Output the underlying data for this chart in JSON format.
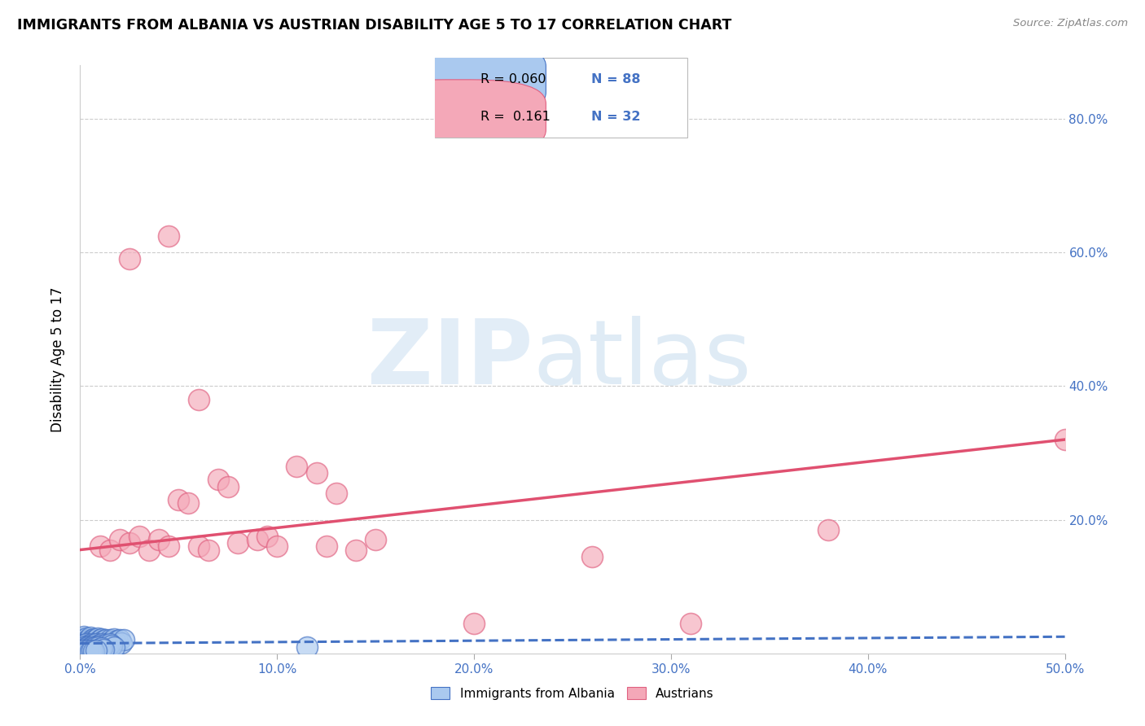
{
  "title": "IMMIGRANTS FROM ALBANIA VS AUSTRIAN DISABILITY AGE 5 TO 17 CORRELATION CHART",
  "source": "Source: ZipAtlas.com",
  "xlabel_ticks": [
    "0.0%",
    "10.0%",
    "20.0%",
    "30.0%",
    "40.0%",
    "50.0%"
  ],
  "xlabel_vals": [
    0.0,
    0.1,
    0.2,
    0.3,
    0.4,
    0.5
  ],
  "ylabel_label": "Disability Age 5 to 17",
  "xlim": [
    0.0,
    0.5
  ],
  "ylim": [
    0.0,
    0.88
  ],
  "right_yticks": [
    0.0,
    0.2,
    0.4,
    0.6,
    0.8
  ],
  "right_yticklabels": [
    "",
    "20.0%",
    "40.0%",
    "60.0%",
    "80.0%"
  ],
  "albania_color": "#aac9ef",
  "austria_color": "#f4a8b8",
  "albania_edge_color": "#4472c4",
  "austria_edge_color": "#e06080",
  "albania_line_color": "#4472c4",
  "austria_line_color": "#e05070",
  "grid_color": "#cccccc",
  "tick_color": "#4472c4",
  "legend_R_albania": "R = 0.060",
  "legend_N_albania": "N = 88",
  "legend_R_austria": "R =  0.161",
  "legend_N_austria": "N = 32",
  "albania_trendline_x": [
    0.0,
    0.5
  ],
  "albania_trendline_y": [
    0.015,
    0.025
  ],
  "austria_trendline_x": [
    0.0,
    0.5
  ],
  "austria_trendline_y": [
    0.155,
    0.32
  ],
  "albania_x": [
    0.001,
    0.001,
    0.001,
    0.002,
    0.002,
    0.002,
    0.003,
    0.003,
    0.003,
    0.004,
    0.004,
    0.005,
    0.005,
    0.006,
    0.006,
    0.007,
    0.007,
    0.008,
    0.008,
    0.009,
    0.009,
    0.01,
    0.01,
    0.011,
    0.011,
    0.012,
    0.013,
    0.014,
    0.015,
    0.016,
    0.017,
    0.018,
    0.019,
    0.02,
    0.021,
    0.022,
    0.001,
    0.001,
    0.002,
    0.002,
    0.003,
    0.004,
    0.004,
    0.005,
    0.005,
    0.006,
    0.006,
    0.007,
    0.007,
    0.008,
    0.008,
    0.009,
    0.009,
    0.01,
    0.01,
    0.011,
    0.011,
    0.012,
    0.013,
    0.014,
    0.015,
    0.016,
    0.017,
    0.001,
    0.001,
    0.002,
    0.002,
    0.003,
    0.003,
    0.004,
    0.004,
    0.005,
    0.005,
    0.006,
    0.006,
    0.007,
    0.008,
    0.009,
    0.01,
    0.011,
    0.012,
    0.115,
    0.001,
    0.002,
    0.003,
    0.004,
    0.005,
    0.006,
    0.007,
    0.008
  ],
  "albania_y": [
    0.018,
    0.022,
    0.015,
    0.02,
    0.017,
    0.025,
    0.019,
    0.016,
    0.023,
    0.021,
    0.018,
    0.024,
    0.016,
    0.02,
    0.017,
    0.022,
    0.019,
    0.015,
    0.021,
    0.018,
    0.023,
    0.016,
    0.02,
    0.022,
    0.017,
    0.019,
    0.021,
    0.016,
    0.02,
    0.018,
    0.022,
    0.017,
    0.019,
    0.021,
    0.016,
    0.02,
    0.012,
    0.01,
    0.013,
    0.011,
    0.014,
    0.012,
    0.01,
    0.013,
    0.011,
    0.014,
    0.012,
    0.01,
    0.013,
    0.011,
    0.014,
    0.012,
    0.01,
    0.013,
    0.011,
    0.014,
    0.012,
    0.01,
    0.013,
    0.011,
    0.014,
    0.012,
    0.01,
    0.008,
    0.006,
    0.009,
    0.007,
    0.008,
    0.006,
    0.009,
    0.007,
    0.008,
    0.006,
    0.009,
    0.007,
    0.008,
    0.006,
    0.009,
    0.007,
    0.008,
    0.006,
    0.01,
    0.004,
    0.005,
    0.004,
    0.005,
    0.004,
    0.005,
    0.004,
    0.005
  ],
  "austria_x": [
    0.01,
    0.015,
    0.02,
    0.025,
    0.03,
    0.035,
    0.04,
    0.045,
    0.05,
    0.055,
    0.06,
    0.065,
    0.07,
    0.075,
    0.08,
    0.09,
    0.095,
    0.1,
    0.11,
    0.12,
    0.125,
    0.13,
    0.14,
    0.15,
    0.2,
    0.26,
    0.31,
    0.38,
    0.045,
    0.025,
    0.06,
    0.5
  ],
  "austria_y": [
    0.16,
    0.155,
    0.17,
    0.165,
    0.175,
    0.155,
    0.17,
    0.16,
    0.23,
    0.225,
    0.16,
    0.155,
    0.26,
    0.25,
    0.165,
    0.17,
    0.175,
    0.16,
    0.28,
    0.27,
    0.16,
    0.24,
    0.155,
    0.17,
    0.045,
    0.145,
    0.045,
    0.185,
    0.625,
    0.59,
    0.38,
    0.32
  ]
}
